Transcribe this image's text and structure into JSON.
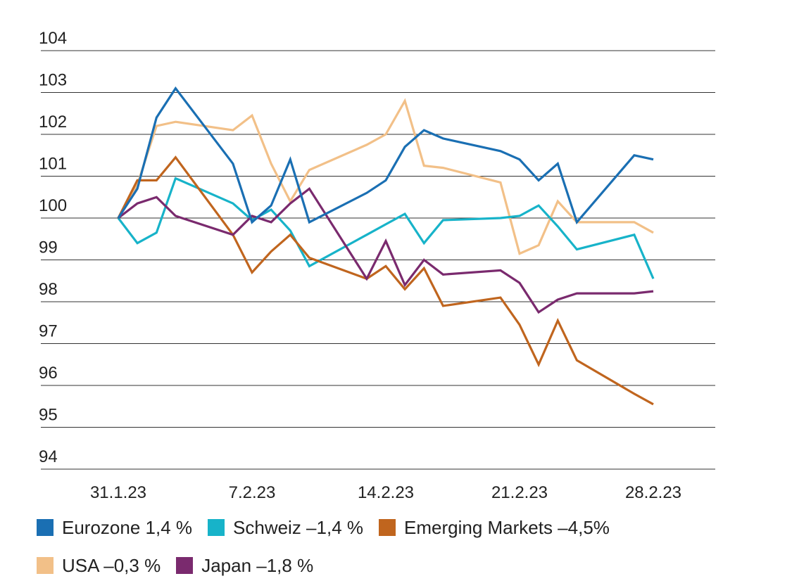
{
  "chart_data": {
    "type": "line",
    "ylim": [
      94,
      104
    ],
    "yticks": [
      104,
      103,
      102,
      101,
      100,
      99,
      98,
      97,
      96,
      95,
      94
    ],
    "xticks": [
      "31.1.23",
      "7.2.23",
      "14.2.23",
      "21.2.23",
      "28.2.23"
    ],
    "grid": true,
    "legend_position": "bottom",
    "series": [
      {
        "name": "Eurozone 1,4 %",
        "color": "#1a6fb3",
        "values": [
          {
            "x": "2023-01-31",
            "y": 100.0
          },
          {
            "x": "2023-02-01",
            "y": 100.7
          },
          {
            "x": "2023-02-02",
            "y": 102.4
          },
          {
            "x": "2023-02-03",
            "y": 103.1
          },
          {
            "x": "2023-02-06",
            "y": 101.3
          },
          {
            "x": "2023-02-07",
            "y": 99.9
          },
          {
            "x": "2023-02-08",
            "y": 100.3
          },
          {
            "x": "2023-02-09",
            "y": 101.4
          },
          {
            "x": "2023-02-10",
            "y": 99.9
          },
          {
            "x": "2023-02-13",
            "y": 100.6
          },
          {
            "x": "2023-02-14",
            "y": 100.9
          },
          {
            "x": "2023-02-15",
            "y": 101.7
          },
          {
            "x": "2023-02-16",
            "y": 102.1
          },
          {
            "x": "2023-02-17",
            "y": 101.9
          },
          {
            "x": "2023-02-20",
            "y": 101.6
          },
          {
            "x": "2023-02-21",
            "y": 101.4
          },
          {
            "x": "2023-02-22",
            "y": 100.9
          },
          {
            "x": "2023-02-23",
            "y": 101.3
          },
          {
            "x": "2023-02-24",
            "y": 99.9
          },
          {
            "x": "2023-02-27",
            "y": 101.5
          },
          {
            "x": "2023-02-28",
            "y": 101.4
          }
        ]
      },
      {
        "name": "Schweiz –1,4 %",
        "color": "#17b3c9",
        "values": [
          {
            "x": "2023-01-31",
            "y": 100.0
          },
          {
            "x": "2023-02-01",
            "y": 99.4
          },
          {
            "x": "2023-02-02",
            "y": 99.65
          },
          {
            "x": "2023-02-03",
            "y": 100.95
          },
          {
            "x": "2023-02-06",
            "y": 100.35
          },
          {
            "x": "2023-02-07",
            "y": 99.95
          },
          {
            "x": "2023-02-08",
            "y": 100.2
          },
          {
            "x": "2023-02-09",
            "y": 99.7
          },
          {
            "x": "2023-02-10",
            "y": 98.85
          },
          {
            "x": "2023-02-13",
            "y": 99.6
          },
          {
            "x": "2023-02-14",
            "y": 99.85
          },
          {
            "x": "2023-02-15",
            "y": 100.1
          },
          {
            "x": "2023-02-16",
            "y": 99.4
          },
          {
            "x": "2023-02-17",
            "y": 99.95
          },
          {
            "x": "2023-02-20",
            "y": 100.0
          },
          {
            "x": "2023-02-21",
            "y": 100.05
          },
          {
            "x": "2023-02-22",
            "y": 100.3
          },
          {
            "x": "2023-02-23",
            "y": 99.8
          },
          {
            "x": "2023-02-24",
            "y": 99.25
          },
          {
            "x": "2023-02-27",
            "y": 99.6
          },
          {
            "x": "2023-02-28",
            "y": 98.55
          }
        ]
      },
      {
        "name": "Emerging Markets –4,5%",
        "color": "#c0651e",
        "values": [
          {
            "x": "2023-01-31",
            "y": 100.0
          },
          {
            "x": "2023-02-01",
            "y": 100.9
          },
          {
            "x": "2023-02-02",
            "y": 100.9
          },
          {
            "x": "2023-02-03",
            "y": 101.45
          },
          {
            "x": "2023-02-06",
            "y": 99.6
          },
          {
            "x": "2023-02-07",
            "y": 98.7
          },
          {
            "x": "2023-02-08",
            "y": 99.2
          },
          {
            "x": "2023-02-09",
            "y": 99.6
          },
          {
            "x": "2023-02-10",
            "y": 99.05
          },
          {
            "x": "2023-02-13",
            "y": 98.55
          },
          {
            "x": "2023-02-14",
            "y": 98.85
          },
          {
            "x": "2023-02-15",
            "y": 98.3
          },
          {
            "x": "2023-02-16",
            "y": 98.8
          },
          {
            "x": "2023-02-17",
            "y": 97.9
          },
          {
            "x": "2023-02-20",
            "y": 98.1
          },
          {
            "x": "2023-02-21",
            "y": 97.45
          },
          {
            "x": "2023-02-22",
            "y": 96.5
          },
          {
            "x": "2023-02-23",
            "y": 97.55
          },
          {
            "x": "2023-02-24",
            "y": 96.6
          },
          {
            "x": "2023-02-27",
            "y": 95.8
          },
          {
            "x": "2023-02-28",
            "y": 95.55
          }
        ]
      },
      {
        "name": "USA –0,3 %",
        "color": "#f2c088",
        "values": [
          {
            "x": "2023-01-31",
            "y": 100.0
          },
          {
            "x": "2023-02-01",
            "y": 100.8
          },
          {
            "x": "2023-02-02",
            "y": 102.2
          },
          {
            "x": "2023-02-03",
            "y": 102.3
          },
          {
            "x": "2023-02-06",
            "y": 102.1
          },
          {
            "x": "2023-02-07",
            "y": 102.45
          },
          {
            "x": "2023-02-08",
            "y": 101.3
          },
          {
            "x": "2023-02-09",
            "y": 100.4
          },
          {
            "x": "2023-02-10",
            "y": 101.15
          },
          {
            "x": "2023-02-13",
            "y": 101.75
          },
          {
            "x": "2023-02-14",
            "y": 102.0
          },
          {
            "x": "2023-02-15",
            "y": 102.8
          },
          {
            "x": "2023-02-16",
            "y": 101.25
          },
          {
            "x": "2023-02-17",
            "y": 101.2
          },
          {
            "x": "2023-02-20",
            "y": 100.85
          },
          {
            "x": "2023-02-21",
            "y": 99.15
          },
          {
            "x": "2023-02-22",
            "y": 99.35
          },
          {
            "x": "2023-02-23",
            "y": 100.4
          },
          {
            "x": "2023-02-24",
            "y": 99.9
          },
          {
            "x": "2023-02-27",
            "y": 99.9
          },
          {
            "x": "2023-02-28",
            "y": 99.65
          }
        ]
      },
      {
        "name": "Japan –1,8 %",
        "color": "#7a2a6e",
        "values": [
          {
            "x": "2023-01-31",
            "y": 100.0
          },
          {
            "x": "2023-02-01",
            "y": 100.35
          },
          {
            "x": "2023-02-02",
            "y": 100.5
          },
          {
            "x": "2023-02-03",
            "y": 100.05
          },
          {
            "x": "2023-02-06",
            "y": 99.6
          },
          {
            "x": "2023-02-07",
            "y": 100.05
          },
          {
            "x": "2023-02-08",
            "y": 99.9
          },
          {
            "x": "2023-02-09",
            "y": 100.35
          },
          {
            "x": "2023-02-10",
            "y": 100.7
          },
          {
            "x": "2023-02-13",
            "y": 98.55
          },
          {
            "x": "2023-02-14",
            "y": 99.45
          },
          {
            "x": "2023-02-15",
            "y": 98.4
          },
          {
            "x": "2023-02-16",
            "y": 99.0
          },
          {
            "x": "2023-02-17",
            "y": 98.65
          },
          {
            "x": "2023-02-20",
            "y": 98.75
          },
          {
            "x": "2023-02-21",
            "y": 98.45
          },
          {
            "x": "2023-02-22",
            "y": 97.75
          },
          {
            "x": "2023-02-23",
            "y": 98.05
          },
          {
            "x": "2023-02-24",
            "y": 98.2
          },
          {
            "x": "2023-02-27",
            "y": 98.2
          },
          {
            "x": "2023-02-28",
            "y": 98.25
          }
        ]
      }
    ]
  },
  "legend": {
    "rows": [
      [
        {
          "label": "Eurozone 1,4 %",
          "color": "#1a6fb3",
          "name": "eurozone"
        },
        {
          "label": "Schweiz –1,4 %",
          "color": "#17b3c9",
          "name": "schweiz"
        },
        {
          "label": "Emerging Markets –4,5%",
          "color": "#c0651e",
          "name": "emerging-markets"
        }
      ],
      [
        {
          "label": "USA –0,3 %",
          "color": "#f2c088",
          "name": "usa"
        },
        {
          "label": "Japan –1,8 %",
          "color": "#7a2a6e",
          "name": "japan"
        }
      ]
    ]
  }
}
